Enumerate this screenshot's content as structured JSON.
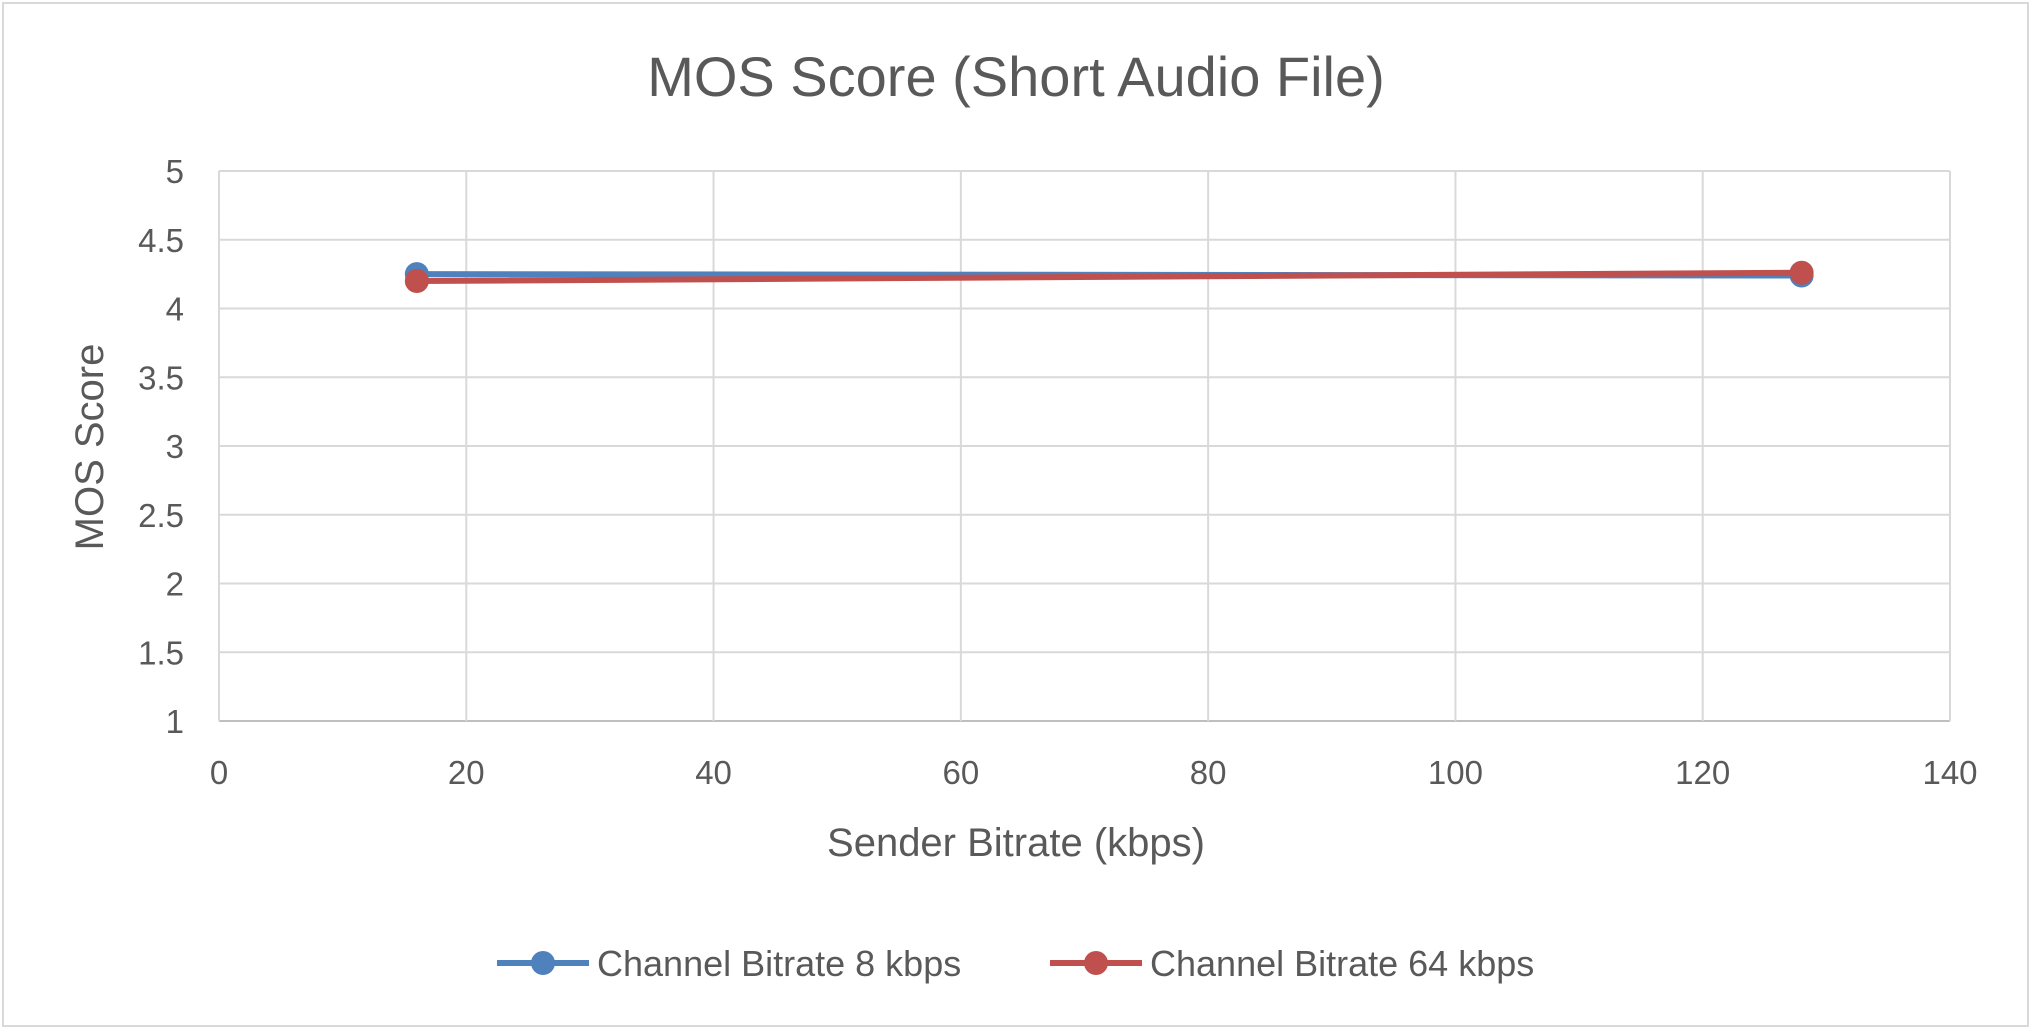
{
  "chart_data": {
    "type": "scatter",
    "title": "MOS Score (Short Audio File)",
    "xlabel": "Sender Bitrate (kbps)",
    "ylabel": "MOS Score",
    "xlim": [
      0,
      140
    ],
    "ylim": [
      1,
      5
    ],
    "xticks": [
      "0",
      "20",
      "40",
      "60",
      "80",
      "100",
      "120",
      "140"
    ],
    "yticks": [
      "1",
      "1.5",
      "2",
      "2.5",
      "3",
      "3.5",
      "4",
      "4.5",
      "5"
    ],
    "grid": true,
    "legend_position": "bottom",
    "series": [
      {
        "name": "Channel Bitrate 8 kbps",
        "color": "#4f81bd",
        "x": [
          16,
          128
        ],
        "y": [
          4.25,
          4.24
        ]
      },
      {
        "name": "Channel Bitrate 64 kbps",
        "color": "#c0504d",
        "x": [
          16,
          128
        ],
        "y": [
          4.2,
          4.26
        ]
      }
    ]
  }
}
